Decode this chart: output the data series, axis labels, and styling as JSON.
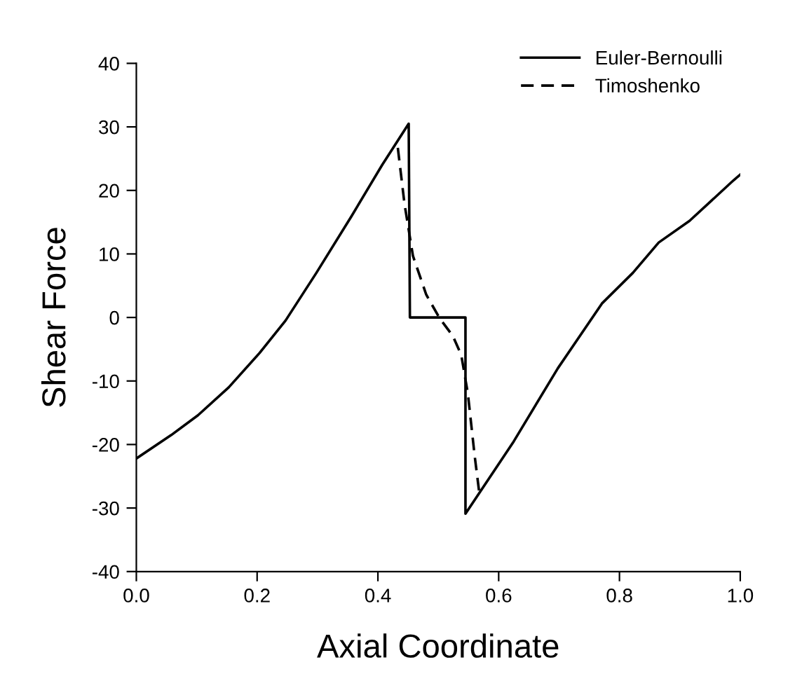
{
  "chart_data": {
    "type": "line",
    "xlabel": "Axial Coordinate",
    "ylabel": "Shear Force",
    "xlim": [
      0,
      1
    ],
    "ylim": [
      -40,
      40
    ],
    "xticks": [
      {
        "value": 0,
        "label": "0.0"
      },
      {
        "value": 0.2,
        "label": "0.2"
      },
      {
        "value": 0.4,
        "label": "0.4"
      },
      {
        "value": 0.6,
        "label": "0.6"
      },
      {
        "value": 0.8,
        "label": "0.8"
      },
      {
        "value": 1,
        "label": "1.0"
      }
    ],
    "yticks": [
      -40,
      -30,
      -20,
      -10,
      0,
      10,
      20,
      30,
      40
    ],
    "grid": false,
    "legend": "top right",
    "marker": "none",
    "series": [
      {
        "name": "Euler-Bernoulli",
        "color": "#000000",
        "line_style": "solid",
        "x": [
          0,
          0.058,
          0.102,
          0.153,
          0.204,
          0.247,
          0.298,
          0.356,
          0.407,
          0.451,
          0.453,
          0.545,
          0.545,
          0.625,
          0.698,
          0.771,
          0.822,
          0.865,
          0.916,
          0.989,
          1.0
        ],
        "values": [
          -22.2,
          -18.5,
          -15.4,
          -11,
          -5.6,
          -0.5,
          7,
          15.9,
          24,
          30.5,
          0,
          0,
          -30.9,
          -19.5,
          -8,
          2.2,
          7,
          11.8,
          15.2,
          21.6,
          22.5
        ]
      },
      {
        "name": "Timoshenko",
        "color": "#000000",
        "line_style": "dashed",
        "x": [
          0.433,
          0.444,
          0.458,
          0.48,
          0.502,
          0.524,
          0.538,
          0.549,
          0.56,
          0.568
        ],
        "values": [
          26.7,
          17.9,
          9.7,
          3.6,
          -0.1,
          -2.9,
          -5.9,
          -12,
          -21.6,
          -27.7
        ]
      }
    ]
  }
}
